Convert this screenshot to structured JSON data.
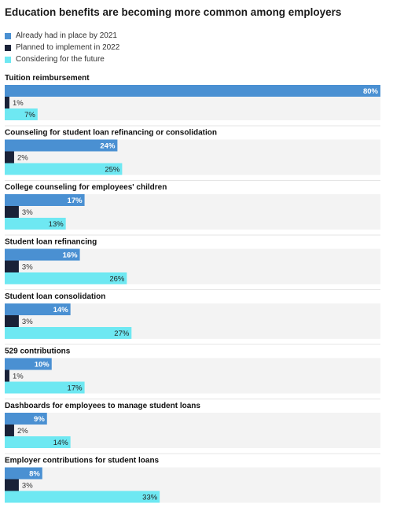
{
  "title": "Education benefits are becoming more common among employers",
  "colors": {
    "series0": "#4a90d2",
    "series1": "#1a2238",
    "series2": "#6ee8f2",
    "track": "#f3f3f3"
  },
  "chart_data": {
    "type": "bar",
    "orientation": "horizontal",
    "title": "Education benefits are becoming more common among employers",
    "legend_position": "top-left",
    "xlim": [
      0,
      80
    ],
    "categories": [
      "Tuition reimbursement",
      "Counseling for student loan refinancing or consolidation",
      "College counseling for employees' children",
      "Student loan refinancing",
      "Student loan consolidation",
      "529 contributions",
      "Dashboards for employees to manage student loans",
      "Employer contributions for student loans"
    ],
    "series": [
      {
        "name": "Already had in place by 2021",
        "values": [
          80,
          24,
          17,
          16,
          14,
          10,
          9,
          8
        ]
      },
      {
        "name": "Planned to implement in 2022",
        "values": [
          1,
          2,
          3,
          3,
          3,
          1,
          2,
          3
        ]
      },
      {
        "name": "Considering for the future",
        "values": [
          7,
          25,
          13,
          26,
          27,
          17,
          14,
          33
        ]
      }
    ],
    "value_suffix": "%"
  }
}
